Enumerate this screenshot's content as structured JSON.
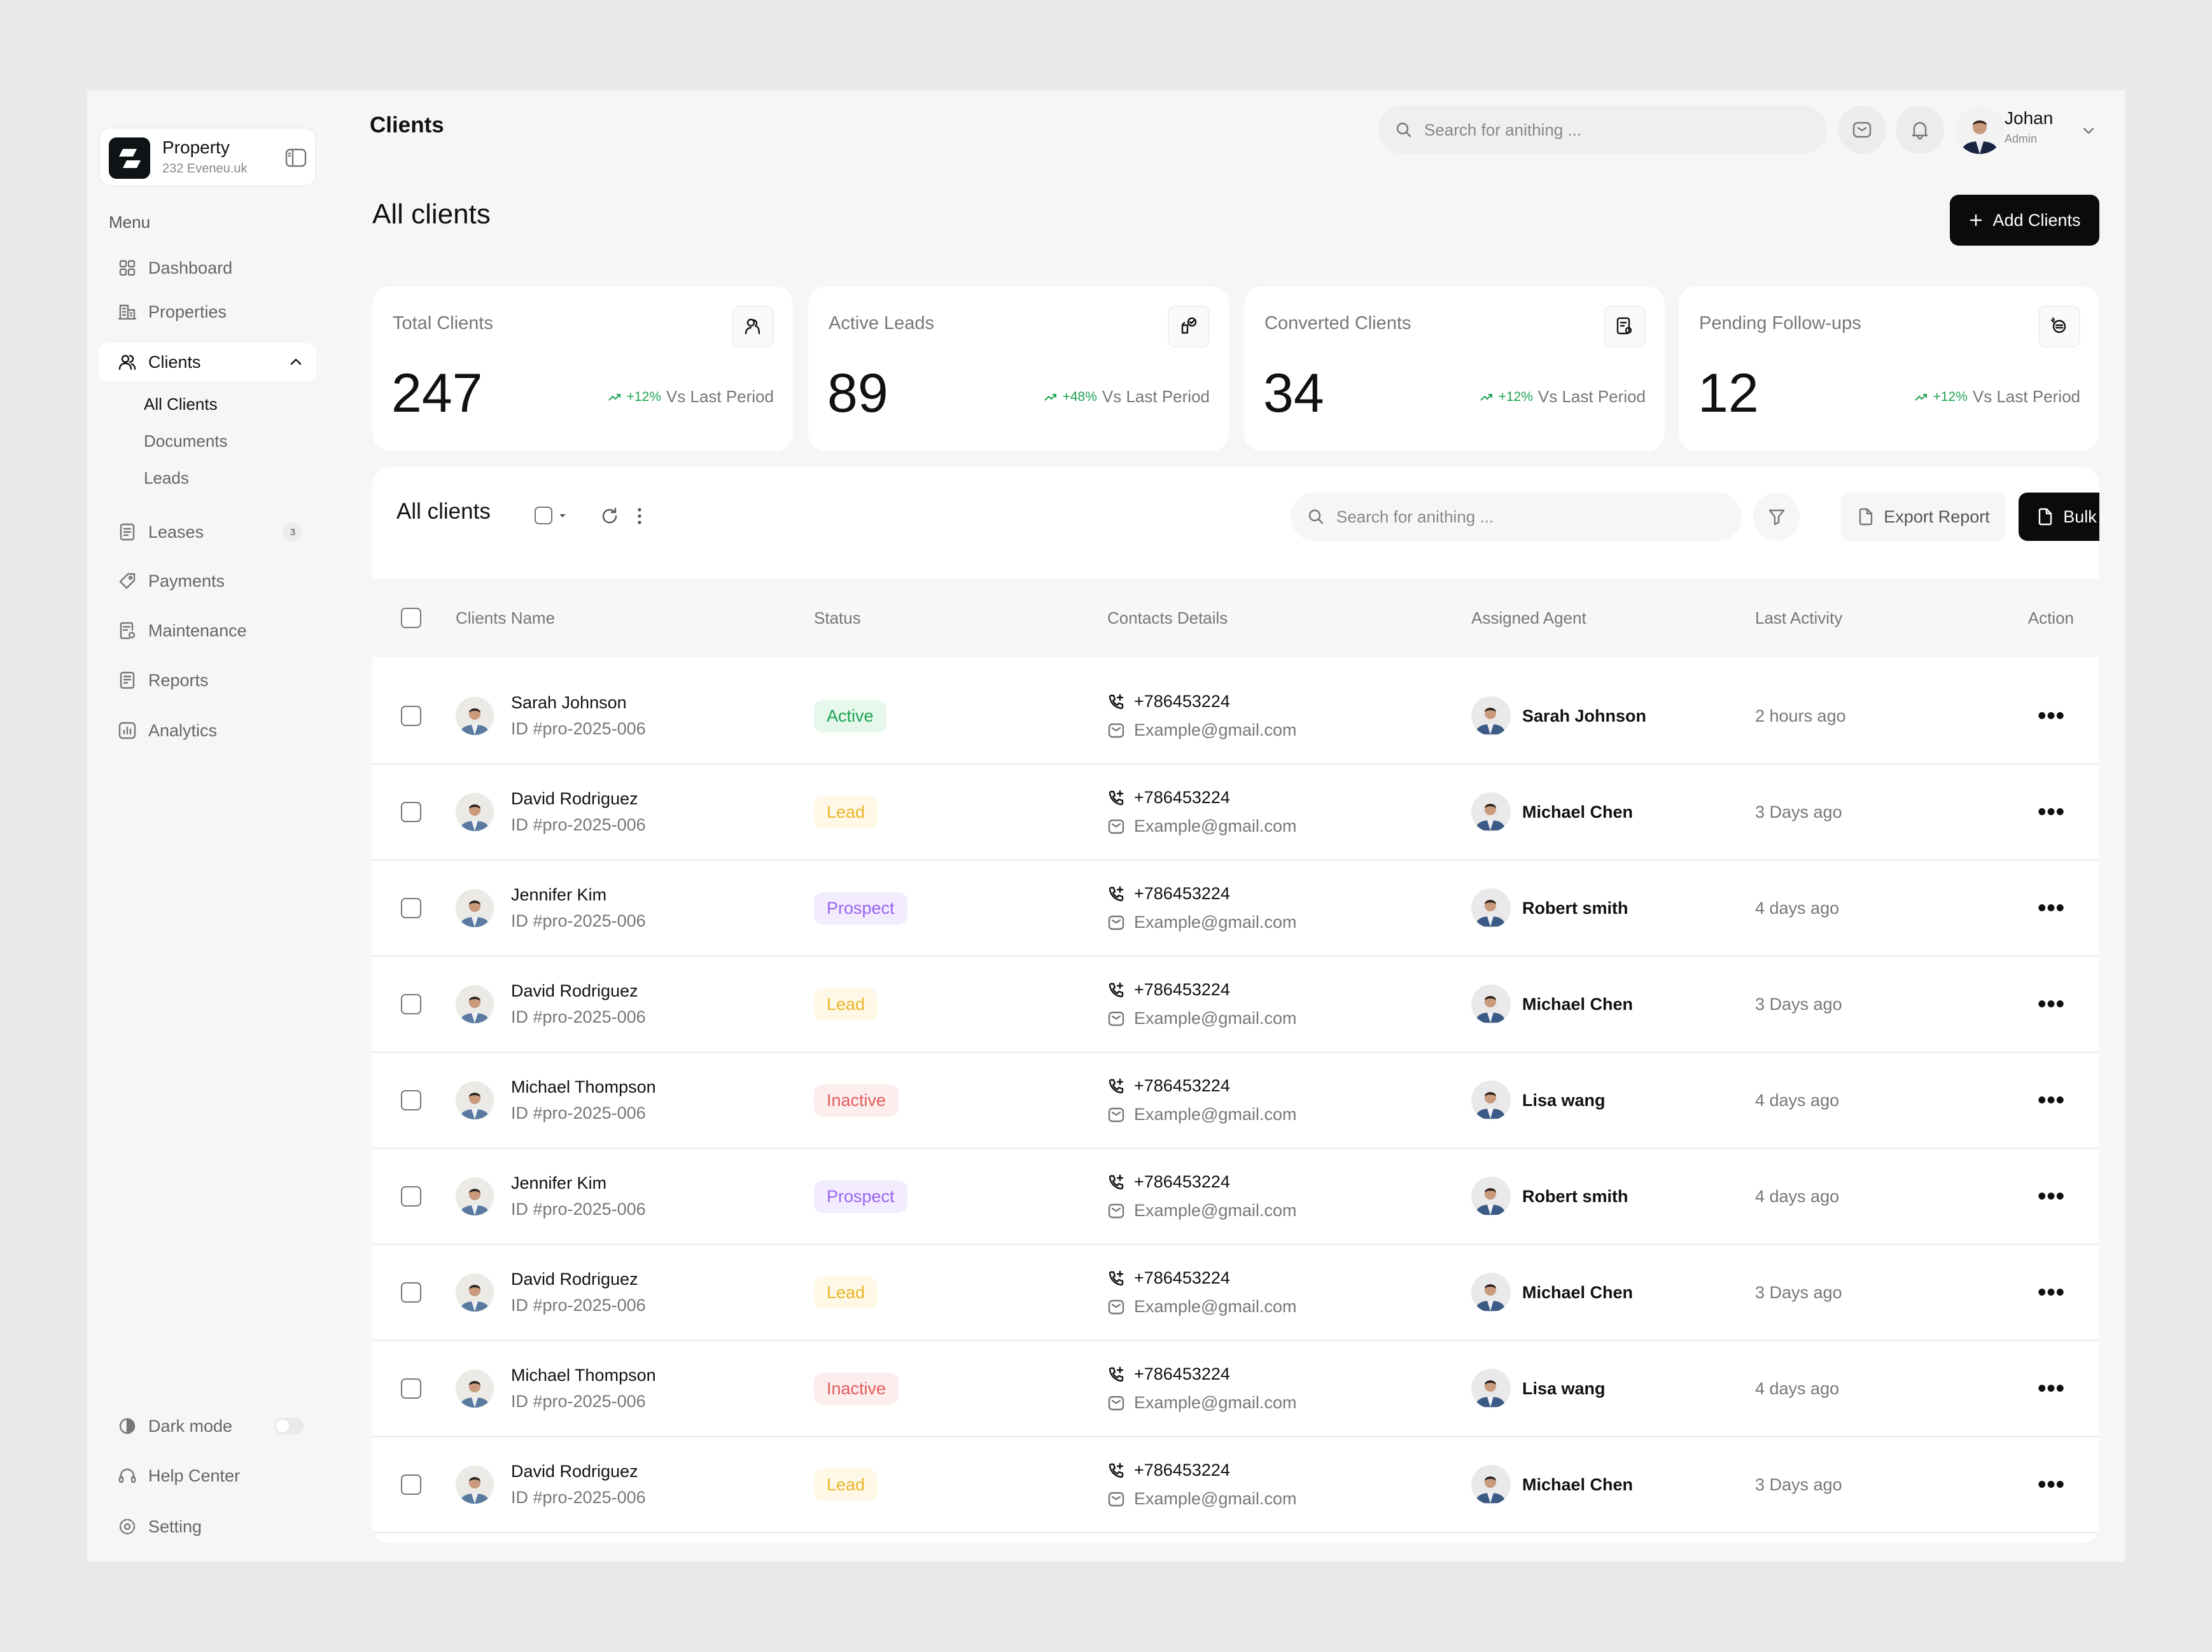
{
  "brand": {
    "title": "Property",
    "subtitle": "232 Eveneu.uk"
  },
  "sidebar": {
    "menu_label": "Menu",
    "items": [
      {
        "label": "Dashboard",
        "icon": "grid-icon"
      },
      {
        "label": "Properties",
        "icon": "building-icon"
      },
      {
        "label": "Clients",
        "icon": "users-icon",
        "expanded": true
      },
      {
        "label": "Leases",
        "icon": "document-icon",
        "count": "3"
      },
      {
        "label": "Payments",
        "icon": "tag-icon"
      },
      {
        "label": "Maintenance",
        "icon": "wrench-doc-icon"
      },
      {
        "label": "Reports",
        "icon": "report-icon"
      },
      {
        "label": "Analytics",
        "icon": "chart-icon"
      }
    ],
    "clients_sub": [
      "All Clients",
      "Documents",
      "Leads"
    ],
    "bottom": {
      "dark_mode": "Dark mode",
      "dark_mode_on": false,
      "help": "Help Center",
      "setting": "Setting"
    }
  },
  "header": {
    "title": "Clients",
    "search_placeholder": "Search for anithing ...",
    "user": {
      "name": "Johan",
      "role": "Admin"
    }
  },
  "page": {
    "title": "All clients",
    "add_button": "Add Clients"
  },
  "stats": [
    {
      "label": "Total Clients",
      "value": "247",
      "change": "+12%",
      "suffix": "Vs Last Period"
    },
    {
      "label": "Active Leads",
      "value": "89",
      "change": "+48%",
      "suffix": "Vs Last Period"
    },
    {
      "label": "Converted Clients",
      "value": "34",
      "change": "+12%",
      "suffix": "Vs Last Period"
    },
    {
      "label": "Pending Follow-ups",
      "value": "12",
      "change": "+12%",
      "suffix": "Vs Last Period"
    }
  ],
  "table": {
    "title": "All clients",
    "search_placeholder": "Search for anithing ...",
    "export_label": "Export Report",
    "bulk_label": "Bulk Email",
    "columns": [
      "Clients Name",
      "Status",
      "Contacts Details",
      "Assigned Agent",
      "Last Activity",
      "Action"
    ],
    "status_colors": {
      "Active": [
        "#e6f8ec",
        "#1ea351"
      ],
      "Lead": [
        "#fff8e6",
        "#e9b52a"
      ],
      "Prospect": [
        "#f3ecff",
        "#9a63f2"
      ],
      "Inactive": [
        "#fdeeee",
        "#e25b5b"
      ]
    },
    "rows": [
      {
        "name": "Sarah Johnson",
        "id": "ID #pro-2025-006",
        "status": "Active",
        "phone": "+786453224",
        "email": "Example@gmail.com",
        "agent": "Sarah Johnson",
        "activity": "2 hours ago"
      },
      {
        "name": "David Rodriguez",
        "id": "ID #pro-2025-006",
        "status": "Lead",
        "phone": "+786453224",
        "email": "Example@gmail.com",
        "agent": "Michael Chen",
        "activity": "3 Days ago"
      },
      {
        "name": "Jennifer Kim",
        "id": "ID #pro-2025-006",
        "status": "Prospect",
        "phone": "+786453224",
        "email": "Example@gmail.com",
        "agent": "Robert smith",
        "activity": "4 days ago"
      },
      {
        "name": "David Rodriguez",
        "id": "ID #pro-2025-006",
        "status": "Lead",
        "phone": "+786453224",
        "email": "Example@gmail.com",
        "agent": "Michael Chen",
        "activity": "3 Days ago"
      },
      {
        "name": "Michael Thompson",
        "id": "ID #pro-2025-006",
        "status": "Inactive",
        "phone": "+786453224",
        "email": "Example@gmail.com",
        "agent": "Lisa wang",
        "activity": "4 days ago"
      },
      {
        "name": "Jennifer Kim",
        "id": "ID #pro-2025-006",
        "status": "Prospect",
        "phone": "+786453224",
        "email": "Example@gmail.com",
        "agent": "Robert smith",
        "activity": "4 days ago"
      },
      {
        "name": "David Rodriguez",
        "id": "ID #pro-2025-006",
        "status": "Lead",
        "phone": "+786453224",
        "email": "Example@gmail.com",
        "agent": "Michael Chen",
        "activity": "3 Days ago"
      },
      {
        "name": "Michael Thompson",
        "id": "ID #pro-2025-006",
        "status": "Inactive",
        "phone": "+786453224",
        "email": "Example@gmail.com",
        "agent": "Lisa wang",
        "activity": "4 days ago"
      },
      {
        "name": "David Rodriguez",
        "id": "ID #pro-2025-006",
        "status": "Lead",
        "phone": "+786453224",
        "email": "Example@gmail.com",
        "agent": "Michael Chen",
        "activity": "3 Days ago"
      }
    ]
  }
}
